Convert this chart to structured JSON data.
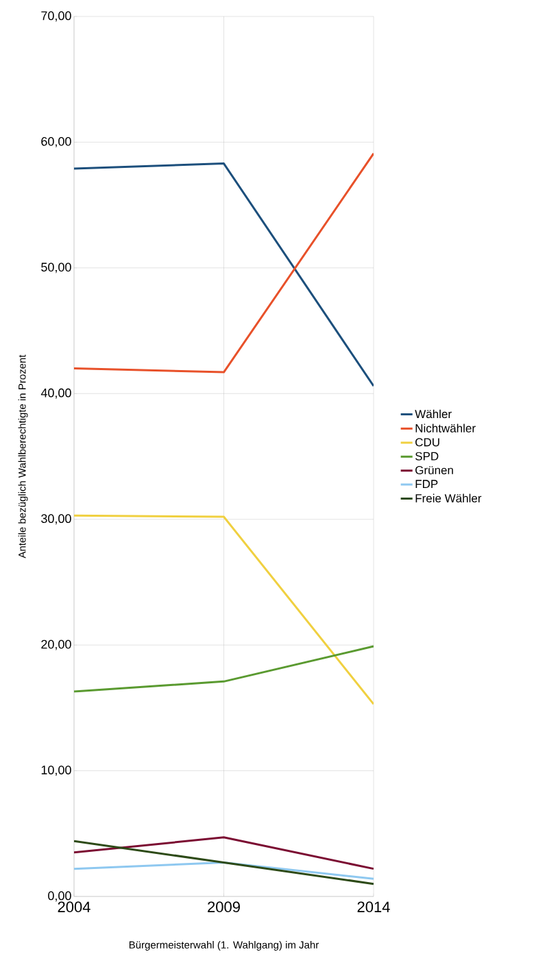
{
  "chart_data": {
    "type": "line",
    "xlabel": "Bürgermeisterwahl (1. Wahlgang) im Jahr",
    "ylabel": "Anteile bezüglich Wahlberechtigte in Prozent",
    "categories": [
      "2004",
      "2009",
      "2014"
    ],
    "series": [
      {
        "name": "Wähler",
        "color": "#1c4f7c",
        "values": [
          57.9,
          58.3,
          40.6
        ]
      },
      {
        "name": "Nichtwähler",
        "color": "#e8512a",
        "values": [
          42.0,
          41.7,
          59.1
        ]
      },
      {
        "name": "CDU",
        "color": "#f0d040",
        "values": [
          30.3,
          30.2,
          15.3
        ]
      },
      {
        "name": "SPD",
        "color": "#5a9a30",
        "values": [
          16.3,
          17.1,
          19.9
        ]
      },
      {
        "name": "Grünen",
        "color": "#7b0c32",
        "values": [
          3.5,
          4.7,
          2.2
        ]
      },
      {
        "name": "FDP",
        "color": "#8ec8f0",
        "values": [
          2.2,
          2.7,
          1.4
        ]
      },
      {
        "name": "Freie Wähler",
        "color": "#2d4a17",
        "values": [
          4.4,
          2.7,
          1.0
        ]
      }
    ],
    "ylim": [
      0,
      70
    ],
    "yticks": [
      {
        "value": 0,
        "label": "0,00"
      },
      {
        "value": 10,
        "label": "10,00"
      },
      {
        "value": 20,
        "label": "20,00"
      },
      {
        "value": 30,
        "label": "30,00"
      },
      {
        "value": 40,
        "label": "40,00"
      },
      {
        "value": 50,
        "label": "50,00"
      },
      {
        "value": 60,
        "label": "60,00"
      },
      {
        "value": 70,
        "label": "70,00"
      }
    ],
    "grid": true,
    "legend": "right"
  }
}
